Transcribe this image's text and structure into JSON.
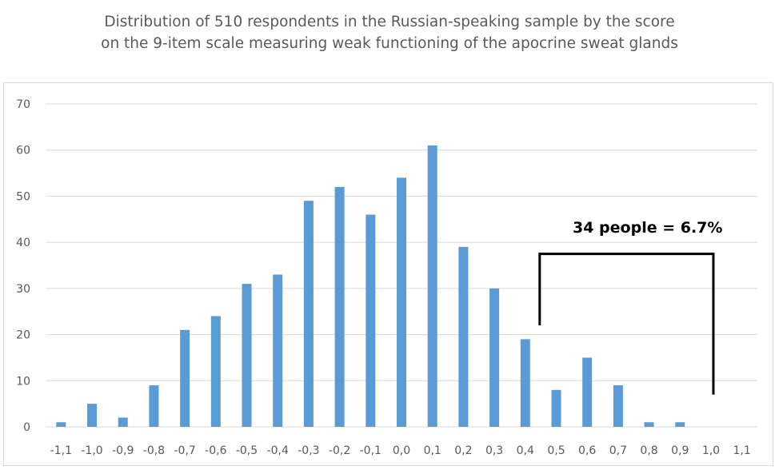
{
  "chart_data": {
    "type": "bar",
    "title_lines": [
      "Distribution of 510 respondents in the Russian-speaking sample by the score",
      "on the 9-item scale measuring weak functioning of the apocrine sweat glands"
    ],
    "xlabel": "",
    "ylabel": "",
    "categories": [
      "-1,1",
      "-1,0",
      "-0,9",
      "-0,8",
      "-0,7",
      "-0,6",
      "-0,5",
      "-0,4",
      "-0,3",
      "-0,2",
      "-0,1",
      "0,0",
      "0,1",
      "0,2",
      "0,3",
      "0,4",
      "0,5",
      "0,6",
      "0,7",
      "0,8",
      "0,9",
      "1,0",
      "1,1"
    ],
    "values": [
      1,
      5,
      2,
      9,
      21,
      24,
      31,
      33,
      49,
      52,
      46,
      54,
      61,
      39,
      30,
      19,
      8,
      15,
      9,
      1,
      1,
      0,
      0
    ],
    "ylim": [
      0,
      70
    ],
    "yticks": [
      "0",
      "10",
      "20",
      "30",
      "40",
      "50",
      "60",
      "70"
    ],
    "grid": true,
    "bar_color": "#5b9bd5",
    "annotation": "34 people = 6.7%"
  }
}
